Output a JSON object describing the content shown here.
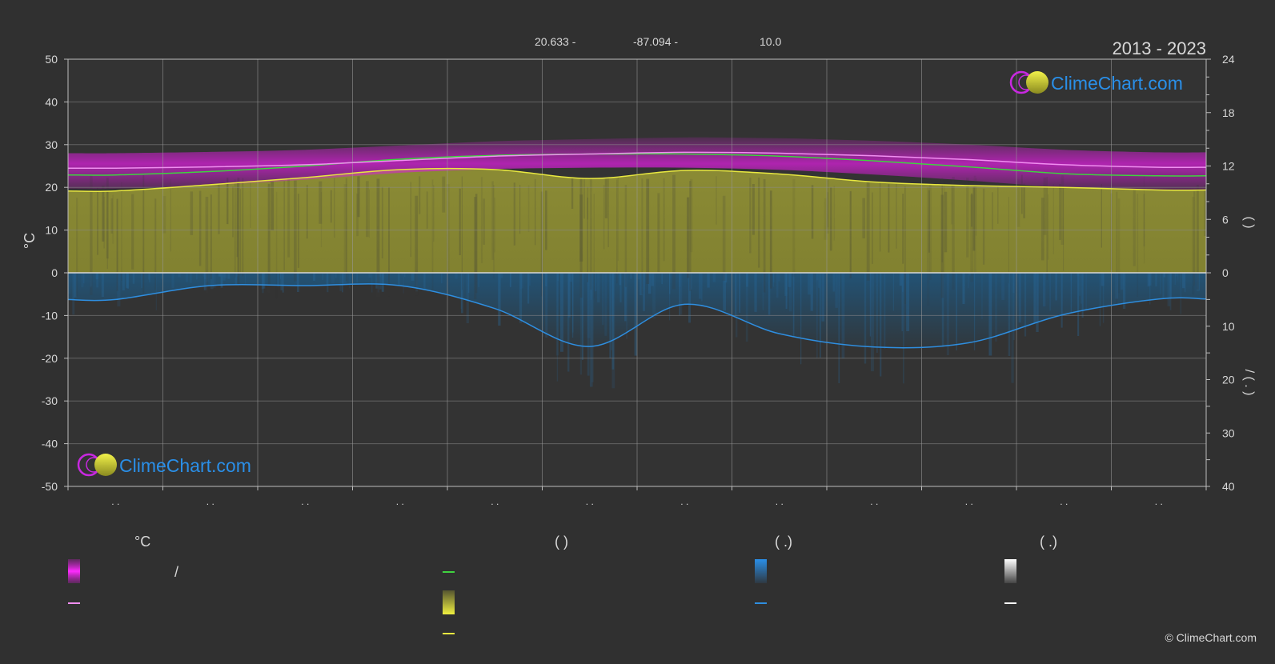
{
  "header": {
    "lat": "20.633 -",
    "lon": "-87.094 -",
    "elev": "10.0",
    "period": "2013 - 2023"
  },
  "brand": {
    "name": "ClimeChart.com",
    "copyright": "© ClimeChart.com"
  },
  "colors": {
    "background": "#303030",
    "magenta": "#d81fd8",
    "pink_line": "#f08ef0",
    "green_line": "#3fd33f",
    "yellow": "#d8d835",
    "yellow_fill": "#8c8c33",
    "blue_line": "#2e8ee0",
    "blue_fill": "#1e5a85",
    "brand_blue": "#2a8fe8"
  },
  "chart_data": {
    "type": "area",
    "x": [
      "01",
      "02",
      "03",
      "04",
      "05",
      "06",
      "07",
      "08",
      "09",
      "10",
      "11",
      "12"
    ],
    "x_tick_labels": [
      ". .",
      ". .",
      ". .",
      ". .",
      ". .",
      ". .",
      ". .",
      ". .",
      ". .",
      ". .",
      ". .",
      ". ."
    ],
    "y_left": {
      "label": "°C",
      "range": [
        -50,
        50
      ],
      "ticks": [
        50,
        40,
        30,
        20,
        10,
        0,
        -10,
        -20,
        -30,
        -40,
        -50
      ]
    },
    "y_right_top": {
      "label": "(   )",
      "range": [
        0,
        24
      ],
      "ticks": [
        24,
        18,
        12,
        6,
        0
      ]
    },
    "y_right_bottom": {
      "label": "/   ( . )",
      "range": [
        0,
        40
      ],
      "ticks": [
        0,
        10,
        20,
        30,
        40
      ]
    },
    "grid": true,
    "series": [
      {
        "key": "max_temp",
        "values": [
          24.5,
          24.8,
          25.3,
          26.3,
          27.3,
          27.8,
          28.2,
          28.0,
          27.4,
          26.5,
          25.3,
          24.7
        ]
      },
      {
        "key": "mean_temp",
        "values": [
          22.9,
          23.7,
          25.0,
          26.6,
          27.5,
          27.8,
          27.8,
          27.3,
          26.2,
          24.8,
          23.2,
          22.7
        ]
      },
      {
        "key": "sunshine_hours",
        "values": [
          9.2,
          9.9,
          10.7,
          11.6,
          11.6,
          10.6,
          11.5,
          11.1,
          10.2,
          9.8,
          9.6,
          9.3
        ]
      },
      {
        "key": "precipitation",
        "values": [
          5.0,
          2.4,
          2.4,
          2.4,
          6.7,
          13.8,
          5.9,
          11.4,
          13.9,
          13.1,
          7.8,
          4.9
        ]
      }
    ]
  },
  "legend": {
    "col1_head": "°C",
    "col1_sep": "/",
    "col2_head": "(          )",
    "col3_head": "(   .)",
    "col4_head": "(   .)"
  }
}
